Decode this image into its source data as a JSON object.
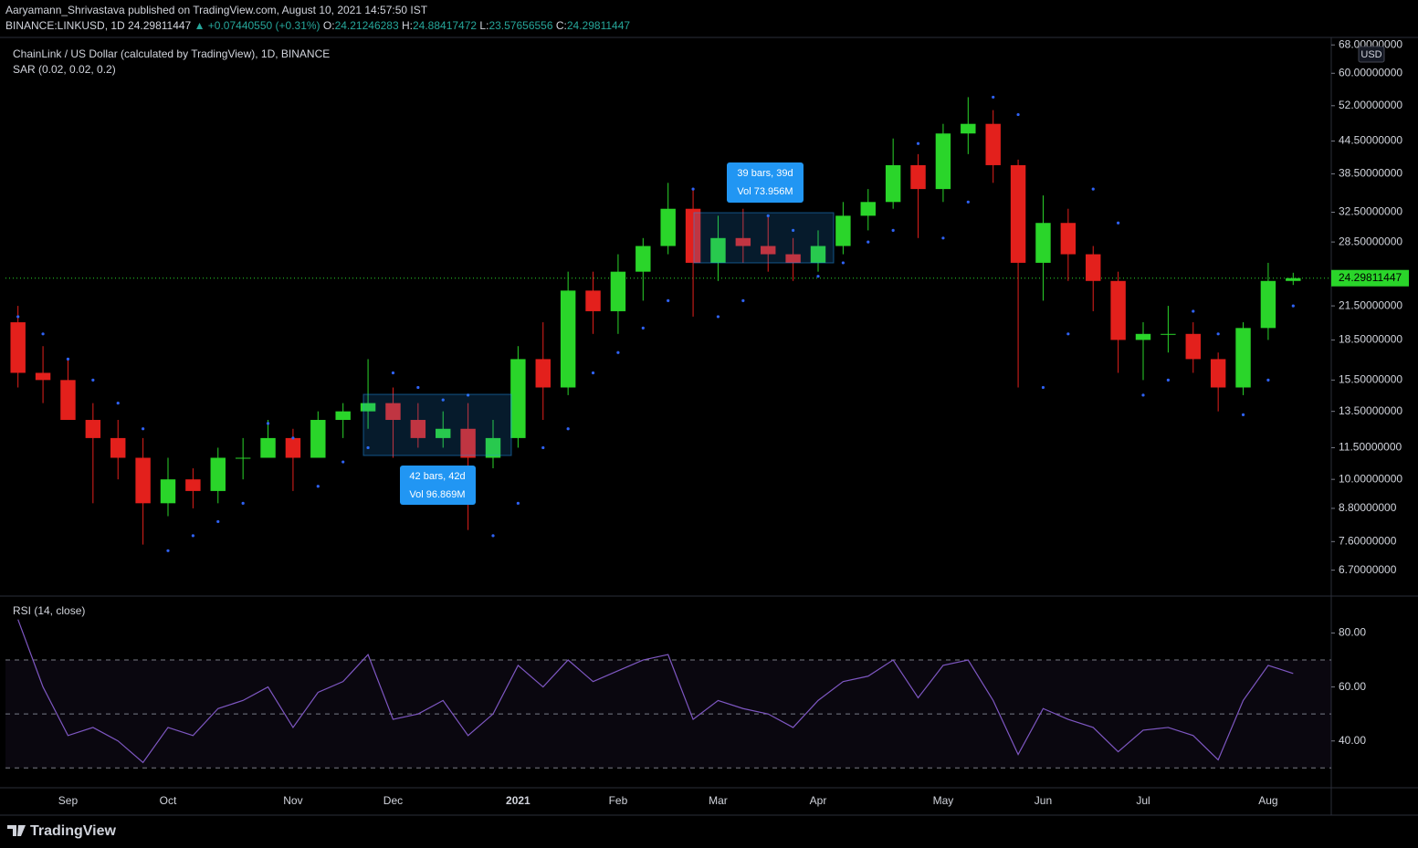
{
  "header": {
    "publisher_line": "Aaryamann_Shrivastava published on TradingView.com, August 10, 2021 14:57:50 IST",
    "symbol": "BINANCE:LINKUSD, 1D",
    "last": "24.29811447",
    "change": "▲ +0.07440550 (+0.31%)",
    "ohlc": [
      {
        "label": "O:",
        "value": "24.21246283"
      },
      {
        "label": "H:",
        "value": "24.88417472"
      },
      {
        "label": "L:",
        "value": "23.57656556"
      },
      {
        "label": "C:",
        "value": "24.29811447"
      }
    ],
    "logo": "TradingView"
  },
  "chart_data": [
    {
      "type": "candlestick",
      "title": "ChainLink / US Dollar (calculated by TradingView), 1D, BINANCE",
      "indicator": "SAR (0.02, 0.02, 0.2)",
      "currency": "USD",
      "log_scale": true,
      "up_color": "#2ad52a",
      "down_color": "#e3201c",
      "sar_color": "#2f62f5",
      "categories": [
        null,
        null,
        "Sep",
        null,
        null,
        null,
        "Oct",
        null,
        null,
        null,
        null,
        "Nov",
        null,
        null,
        null,
        "Dec",
        null,
        null,
        null,
        null,
        "2021",
        null,
        null,
        null,
        "Feb",
        null,
        null,
        null,
        "Mar",
        null,
        null,
        null,
        "Apr",
        null,
        null,
        null,
        null,
        "May",
        null,
        null,
        null,
        "Jun",
        null,
        null,
        null,
        "Jul",
        null,
        null,
        null,
        null,
        "Aug",
        null
      ],
      "candles": [
        [
          20,
          21.5,
          15,
          16
        ],
        [
          16,
          18,
          14,
          15.5
        ],
        [
          15.5,
          17,
          13,
          13
        ],
        [
          13,
          14,
          9,
          12
        ],
        [
          12,
          13,
          10,
          11
        ],
        [
          11,
          12,
          7.5,
          9
        ],
        [
          9,
          11,
          8.5,
          10
        ],
        [
          10,
          10.5,
          8.8,
          9.5
        ],
        [
          9.5,
          11.5,
          9,
          11
        ],
        [
          11,
          12,
          10,
          11
        ],
        [
          11,
          13,
          11,
          12
        ],
        [
          12,
          12.5,
          9.5,
          11
        ],
        [
          11,
          13.5,
          11,
          13
        ],
        [
          13,
          14,
          12,
          13.5
        ],
        [
          13.5,
          17,
          12.5,
          14
        ],
        [
          14,
          15,
          11,
          13
        ],
        [
          13,
          14,
          11.5,
          12
        ],
        [
          12,
          13.5,
          11.5,
          12.5
        ],
        [
          12.5,
          14,
          8,
          11
        ],
        [
          11,
          13,
          10.5,
          12
        ],
        [
          12,
          18,
          11.5,
          17
        ],
        [
          17,
          20,
          13,
          15
        ],
        [
          15,
          25,
          14.5,
          23
        ],
        [
          23,
          25,
          19,
          21
        ],
        [
          21,
          27,
          19,
          25
        ],
        [
          25,
          29,
          22,
          28
        ],
        [
          28,
          37,
          27,
          33
        ],
        [
          33,
          36,
          20.5,
          26
        ],
        [
          26,
          32,
          24,
          29
        ],
        [
          29,
          33,
          26,
          28
        ],
        [
          28,
          32,
          25,
          27
        ],
        [
          27,
          29,
          24,
          26
        ],
        [
          26,
          30,
          25,
          28
        ],
        [
          28,
          34,
          27,
          32
        ],
        [
          32,
          36,
          30,
          34
        ],
        [
          34,
          45,
          33,
          40
        ],
        [
          40,
          42,
          29,
          36
        ],
        [
          36,
          48,
          34,
          46
        ],
        [
          46,
          54,
          42,
          48
        ],
        [
          48,
          51,
          37,
          40
        ],
        [
          40,
          41,
          15,
          26
        ],
        [
          26,
          35,
          22,
          31
        ],
        [
          31,
          33,
          24,
          27
        ],
        [
          27,
          28,
          21,
          24
        ],
        [
          24,
          25,
          16,
          18.5
        ],
        [
          18.5,
          20,
          15.5,
          19
        ],
        [
          19,
          21.5,
          17.5,
          19
        ],
        [
          19,
          20,
          16,
          17
        ],
        [
          17,
          17.5,
          13.5,
          15
        ],
        [
          15,
          20,
          14.5,
          19.5
        ],
        [
          19.5,
          26,
          18.5,
          24
        ],
        [
          24,
          24.88417472,
          23.57656556,
          24.29811447
        ]
      ],
      "sar": [
        20.5,
        19,
        17,
        15.5,
        14,
        12.5,
        7.3,
        7.8,
        8.3,
        9,
        12.8,
        12,
        9.7,
        10.8,
        11.5,
        16,
        15,
        14.2,
        14.5,
        7.8,
        9,
        11.5,
        12.5,
        16,
        17.5,
        19.5,
        22,
        36,
        20.5,
        22,
        32,
        30,
        24.5,
        26,
        28.5,
        30,
        44,
        29,
        34,
        54,
        50,
        15,
        19,
        36,
        31,
        14.5,
        15.5,
        21,
        19,
        13.3,
        15.5,
        21.5
      ],
      "last_price": {
        "value": 24.29811447,
        "label": "24.29811447"
      },
      "ylim": [
        6,
        70
      ],
      "yticks": [
        {
          "value": 6.7,
          "label": "6.70000000"
        },
        {
          "value": 7.6,
          "label": "7.60000000"
        },
        {
          "value": 8.8,
          "label": "8.80000000"
        },
        {
          "value": 10,
          "label": "10.00000000"
        },
        {
          "value": 11.5,
          "label": "11.50000000"
        },
        {
          "value": 13.5,
          "label": "13.50000000"
        },
        {
          "value": 15.5,
          "label": "15.50000000"
        },
        {
          "value": 18.5,
          "label": "18.50000000"
        },
        {
          "value": 21.5,
          "label": "21.50000000"
        },
        {
          "value": 28.5,
          "label": "28.50000000"
        },
        {
          "value": 32.5,
          "label": "32.50000000"
        },
        {
          "value": 38.5,
          "label": "38.50000000"
        },
        {
          "value": 44.5,
          "label": "44.50000000"
        },
        {
          "value": 52,
          "label": "52.00000000"
        },
        {
          "value": 60,
          "label": "60.00000000"
        },
        {
          "value": 68,
          "label": "68.00000000"
        }
      ],
      "annotations": [
        {
          "lines": [
            "42 bars, 42d",
            "Vol 96.869M"
          ]
        },
        {
          "lines": [
            "39 bars, 39d",
            "Vol 73.956M"
          ]
        }
      ]
    },
    {
      "type": "line",
      "title": "RSI (14, close)",
      "color": "#7e57c2",
      "values": [
        85,
        60,
        42,
        45,
        40,
        32,
        45,
        42,
        52,
        55,
        60,
        45,
        58,
        62,
        72,
        48,
        50,
        55,
        42,
        50,
        68,
        60,
        70,
        62,
        66,
        70,
        72,
        48,
        55,
        52,
        50,
        45,
        55,
        62,
        64,
        70,
        56,
        68,
        70,
        55,
        35,
        52,
        48,
        45,
        36,
        44,
        45,
        42,
        33,
        55,
        68,
        65
      ],
      "bands": [
        70,
        50,
        30
      ],
      "ylim": [
        23,
        93
      ],
      "yticks": [
        {
          "value": 40,
          "label": "40.00"
        },
        {
          "value": 60,
          "label": "60.00"
        },
        {
          "value": 80,
          "label": "80.00"
        }
      ]
    }
  ]
}
